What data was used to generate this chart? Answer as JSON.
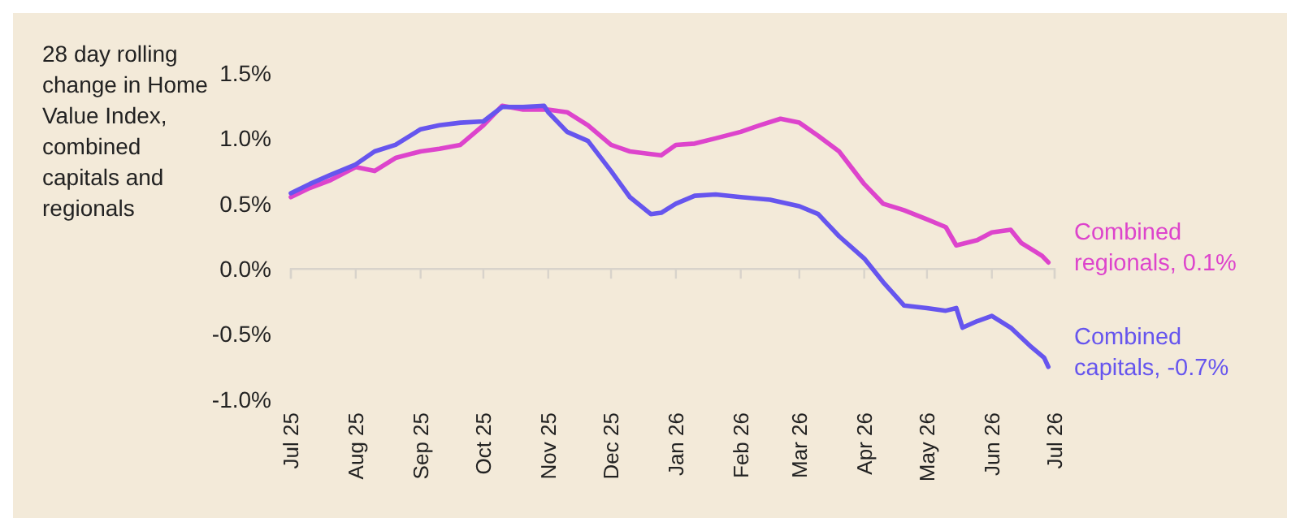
{
  "chart_data": {
    "type": "line",
    "ylabel": "28 day rolling change in Home Value Index, combined capitals and regionals",
    "xlim": [
      "2025-07-01",
      "2026-07-01"
    ],
    "xticks": [
      {
        "value": "2025-07-01",
        "label": "Jul 25"
      },
      {
        "value": "2025-08-01",
        "label": "Aug 25"
      },
      {
        "value": "2025-09-01",
        "label": "Sep 25"
      },
      {
        "value": "2025-10-01",
        "label": "Oct 25"
      },
      {
        "value": "2025-11-01",
        "label": "Nov 25"
      },
      {
        "value": "2025-12-01",
        "label": "Dec 25"
      },
      {
        "value": "2026-01-01",
        "label": "Jan 26"
      },
      {
        "value": "2026-02-01",
        "label": "Feb 26"
      },
      {
        "value": "2026-03-01",
        "label": "Mar 26"
      },
      {
        "value": "2026-04-01",
        "label": "Apr 26"
      },
      {
        "value": "2026-05-01",
        "label": "May 26"
      },
      {
        "value": "2026-06-01",
        "label": "Jun 26"
      },
      {
        "value": "2026-07-01",
        "label": "Jul 26"
      }
    ],
    "ylim": [
      -1.0,
      1.5
    ],
    "yticks": [
      {
        "value": -1.0,
        "label": "-1.0%"
      },
      {
        "value": -0.5,
        "label": "-0.5%"
      },
      {
        "value": 0,
        "label": "0.0%"
      },
      {
        "value": 0.5,
        "label": "0.5%"
      },
      {
        "value": 1.0,
        "label": "1.0%"
      },
      {
        "value": 1.5,
        "label": "1.5%"
      }
    ],
    "grid": false,
    "legend": false,
    "line_style": "solid",
    "marker": "none",
    "series": [
      {
        "name": "Combined regionals, 0.1%",
        "color": "#dd44cc",
        "x": [
          "2025-07-01",
          "2025-07-10",
          "2025-07-20",
          "2025-08-01",
          "2025-08-10",
          "2025-08-20",
          "2025-09-01",
          "2025-09-10",
          "2025-09-20",
          "2025-10-01",
          "2025-10-10",
          "2025-10-20",
          "2025-11-01",
          "2025-11-10",
          "2025-11-20",
          "2025-12-01",
          "2025-12-10",
          "2025-12-20",
          "2025-12-25",
          "2026-01-01",
          "2026-01-10",
          "2026-01-20",
          "2026-02-01",
          "2026-02-10",
          "2026-02-20",
          "2026-03-01",
          "2026-03-10",
          "2026-03-20",
          "2026-04-01",
          "2026-04-10",
          "2026-04-20",
          "2026-05-01",
          "2026-05-10",
          "2026-05-15",
          "2026-05-25",
          "2026-06-01",
          "2026-06-10",
          "2026-06-15",
          "2026-06-25",
          "2026-06-28"
        ],
        "values": [
          0.55,
          0.62,
          0.68,
          0.78,
          0.75,
          0.85,
          0.9,
          0.92,
          0.95,
          1.1,
          1.25,
          1.22,
          1.22,
          1.2,
          1.1,
          0.95,
          0.9,
          0.88,
          0.87,
          0.95,
          0.96,
          1.0,
          1.05,
          1.1,
          1.15,
          1.12,
          1.02,
          0.9,
          0.65,
          0.5,
          0.45,
          0.38,
          0.32,
          0.18,
          0.22,
          0.28,
          0.3,
          0.2,
          0.1,
          0.05
        ]
      },
      {
        "name": "Combined capitals, -0.7%",
        "color": "#6655ee",
        "x": [
          "2025-07-01",
          "2025-07-10",
          "2025-07-20",
          "2025-08-01",
          "2025-08-10",
          "2025-08-20",
          "2025-09-01",
          "2025-09-10",
          "2025-09-20",
          "2025-10-01",
          "2025-10-05",
          "2025-10-10",
          "2025-10-20",
          "2025-10-30",
          "2025-11-01",
          "2025-11-10",
          "2025-11-20",
          "2025-12-01",
          "2025-12-10",
          "2025-12-20",
          "2025-12-25",
          "2026-01-01",
          "2026-01-10",
          "2026-01-20",
          "2026-02-01",
          "2026-02-15",
          "2026-03-01",
          "2026-03-10",
          "2026-03-20",
          "2026-04-01",
          "2026-04-10",
          "2026-04-20",
          "2026-05-01",
          "2026-05-10",
          "2026-05-15",
          "2026-05-18",
          "2026-05-25",
          "2026-06-01",
          "2026-06-10",
          "2026-06-20",
          "2026-06-26",
          "2026-06-28"
        ],
        "values": [
          0.58,
          0.65,
          0.72,
          0.8,
          0.9,
          0.95,
          1.07,
          1.1,
          1.12,
          1.13,
          1.18,
          1.24,
          1.24,
          1.25,
          1.2,
          1.05,
          0.98,
          0.75,
          0.55,
          0.42,
          0.43,
          0.5,
          0.56,
          0.57,
          0.55,
          0.53,
          0.48,
          0.42,
          0.25,
          0.08,
          -0.1,
          -0.28,
          -0.3,
          -0.32,
          -0.3,
          -0.45,
          -0.4,
          -0.36,
          -0.45,
          -0.6,
          -0.68,
          -0.75
        ]
      }
    ]
  }
}
